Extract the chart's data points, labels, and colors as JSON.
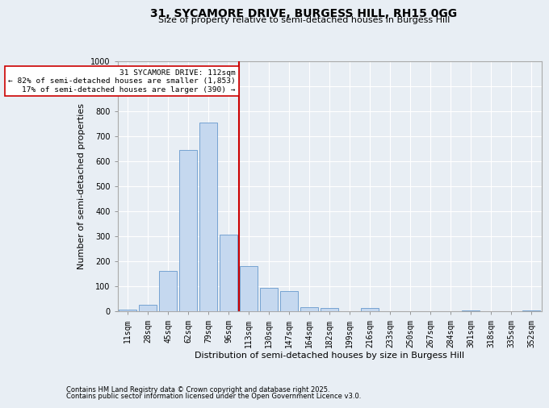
{
  "title1": "31, SYCAMORE DRIVE, BURGESS HILL, RH15 0GG",
  "title2": "Size of property relative to semi-detached houses in Burgess Hill",
  "xlabel": "Distribution of semi-detached houses by size in Burgess Hill",
  "ylabel": "Number of semi-detached properties",
  "footer1": "Contains HM Land Registry data © Crown copyright and database right 2025.",
  "footer2": "Contains public sector information licensed under the Open Government Licence v3.0.",
  "bin_labels": [
    "11sqm",
    "28sqm",
    "45sqm",
    "62sqm",
    "79sqm",
    "96sqm",
    "113sqm",
    "130sqm",
    "147sqm",
    "164sqm",
    "182sqm",
    "199sqm",
    "216sqm",
    "233sqm",
    "250sqm",
    "267sqm",
    "284sqm",
    "301sqm",
    "318sqm",
    "335sqm",
    "352sqm"
  ],
  "bar_values": [
    5,
    25,
    160,
    645,
    755,
    308,
    180,
    93,
    82,
    17,
    12,
    0,
    12,
    0,
    0,
    0,
    0,
    3,
    0,
    0,
    3
  ],
  "bar_color": "#c5d8ef",
  "bar_edge_color": "#6699cc",
  "vline_color": "#cc0000",
  "property_bin_index": 6,
  "annotation_title": "31 SYCAMORE DRIVE: 112sqm",
  "annotation_line1": "← 82% of semi-detached houses are smaller (1,853)",
  "annotation_line2": "17% of semi-detached houses are larger (390) →",
  "annotation_box_color": "#ffffff",
  "annotation_box_edge": "#cc0000",
  "ylim": [
    0,
    1000
  ],
  "yticks": [
    0,
    100,
    200,
    300,
    400,
    500,
    600,
    700,
    800,
    900,
    1000
  ],
  "bg_color": "#e8eef4",
  "plot_bg_color": "#e8eef4",
  "grid_color": "#ffffff",
  "title1_fontsize": 10,
  "title2_fontsize": 8,
  "xlabel_fontsize": 8,
  "ylabel_fontsize": 8,
  "tick_fontsize": 7,
  "footer_fontsize": 6
}
